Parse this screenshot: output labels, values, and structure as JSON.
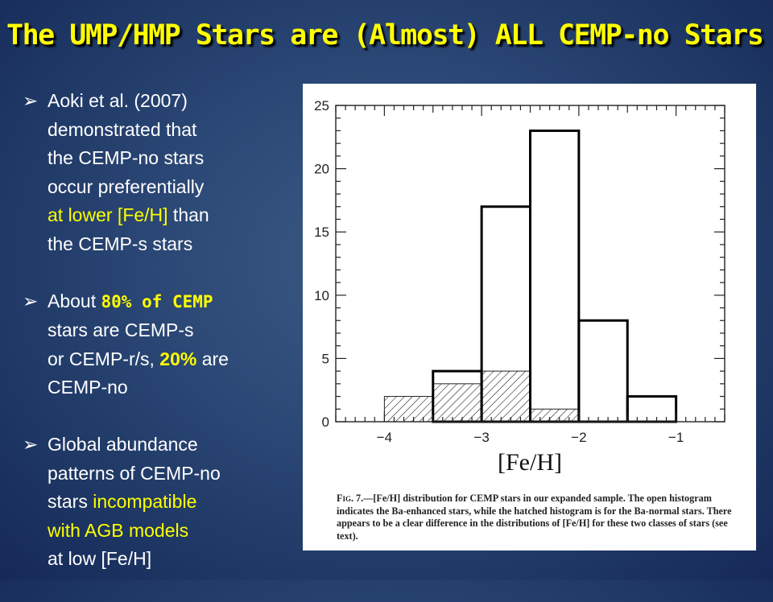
{
  "slide": {
    "title": "The UMP/HMP Stars are (Almost) ALL CEMP-no Stars",
    "bullet_marker": "➢",
    "bullets": [
      {
        "l1": "Aoki et al. (2007)",
        "l2": "demonstrated that",
        "l3": "the CEMP-no stars",
        "l4": "occur preferentially",
        "l5_highlight": "at lower [Fe/H]",
        "l5_rest": " than",
        "l6": "the CEMP-s stars"
      },
      {
        "l1_pre": "About ",
        "l1_highlight": "80% of CEMP",
        "l2": "stars are CEMP-s",
        "l3_pre": "or CEMP-r/s, ",
        "l3_highlight": "20%",
        "l3_post": " are",
        "l4": "CEMP-no"
      },
      {
        "l1": "Global abundance",
        "l2": "patterns of CEMP-no",
        "l3_pre": "stars ",
        "l3_highlight": "incompatible",
        "l4_highlight": "with AGB models",
        "l5": "at low [Fe/H]"
      }
    ],
    "colors": {
      "highlight": "#ffff00",
      "text": "#ffffff"
    }
  },
  "chart_data": {
    "type": "bar",
    "subtype": "histogram",
    "xlabel": "[Fe/H]",
    "bin_edges": [
      -4.5,
      -4.0,
      -3.5,
      -3.0,
      -2.5,
      -2.0,
      -1.5,
      -1.0,
      -0.5
    ],
    "series": [
      {
        "name": "Ba-enhanced stars",
        "style": "open",
        "values": [
          0,
          0,
          4,
          17,
          23,
          8,
          2,
          0
        ]
      },
      {
        "name": "Ba-normal stars",
        "style": "hatched",
        "values": [
          0,
          2,
          3,
          4,
          1,
          0,
          0,
          0
        ]
      }
    ],
    "xlim": [
      -4.5,
      -0.5
    ],
    "ylim": [
      0,
      25
    ],
    "xticks": [
      -4,
      -3,
      -2,
      -1
    ],
    "xtick_labels": [
      "−4",
      "−3",
      "−2",
      "−1"
    ],
    "yticks": [
      0,
      5,
      10,
      15,
      20,
      25
    ],
    "ytick_labels": [
      "0",
      "5",
      "10",
      "15",
      "20",
      "25"
    ],
    "caption": {
      "label": "Fig. 7.",
      "text": "—[Fe/H] distribution for CEMP stars in our expanded sample. The open histogram indicates the Ba-enhanced stars, while the hatched histogram is for the Ba-normal stars. There appears to be a clear difference in the distributions of [Fe/H] for these two classes of stars (see text)."
    }
  }
}
